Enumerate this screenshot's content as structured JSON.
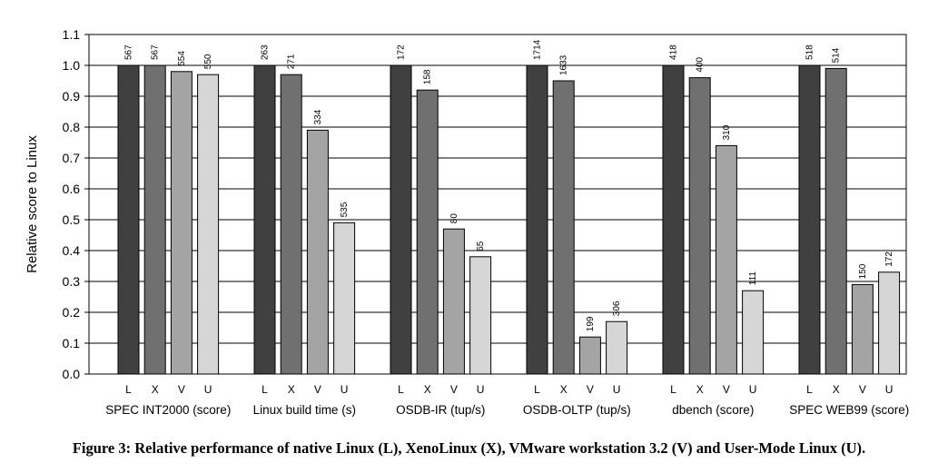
{
  "chart_data": {
    "type": "bar",
    "ylabel": "Relative score to Linux",
    "xlabel": "",
    "ylim": [
      0,
      1.1
    ],
    "yticks": [
      "0.0",
      "0.1",
      "0.2",
      "0.3",
      "0.4",
      "0.5",
      "0.6",
      "0.7",
      "0.8",
      "0.9",
      "1.0",
      "1.1"
    ],
    "grid": "horizontal",
    "series_keys": [
      "L",
      "X",
      "V",
      "U"
    ],
    "series_colors": [
      "#404040",
      "#707070",
      "#a4a4a4",
      "#d6d6d6"
    ],
    "categories": [
      {
        "label": "SPEC INT2000 (score)",
        "values": [
          1.0,
          1.0,
          0.98,
          0.97
        ],
        "data_labels": [
          "567",
          "567",
          "554",
          "550"
        ]
      },
      {
        "label": "Linux build time (s)",
        "values": [
          1.0,
          0.97,
          0.79,
          0.49
        ],
        "data_labels": [
          "263",
          "271",
          "334",
          "535"
        ]
      },
      {
        "label": "OSDB-IR (tup/s)",
        "values": [
          1.0,
          0.92,
          0.47,
          0.38
        ],
        "data_labels": [
          "172",
          "158",
          "80",
          "65"
        ]
      },
      {
        "label": "OSDB-OLTP (tup/s)",
        "values": [
          1.0,
          0.95,
          0.12,
          0.17
        ],
        "data_labels": [
          "1714",
          "1633",
          "199",
          "306"
        ]
      },
      {
        "label": "dbench (score)",
        "values": [
          1.0,
          0.96,
          0.74,
          0.27
        ],
        "data_labels": [
          "418",
          "400",
          "310",
          "111"
        ]
      },
      {
        "label": "SPEC WEB99 (score)",
        "values": [
          1.0,
          0.99,
          0.29,
          0.33
        ],
        "data_labels": [
          "518",
          "514",
          "150",
          "172"
        ]
      }
    ]
  },
  "caption": "Figure 3: Relative performance of native Linux (L), XenoLinux (X), VMware workstation 3.2 (V) and User-Mode Linux (U)."
}
